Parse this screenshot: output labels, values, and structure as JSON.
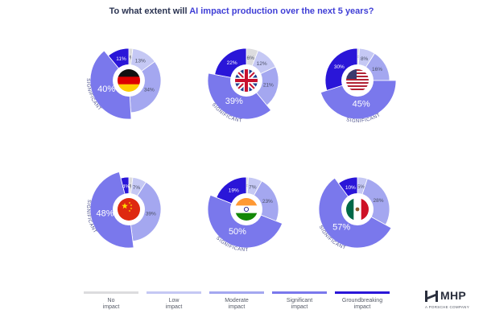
{
  "title": {
    "prefix": "To what extent will ",
    "accent": "AI impact production over the next 5 years?"
  },
  "colors": {
    "no_impact": "#dcdcde",
    "low_impact": "#c5c8f4",
    "moderate_impact": "#a4a7f0",
    "significant_impact": "#7a78ec",
    "groundbreaking_impact": "#2a16d8",
    "title_accent": "#3f3ed6"
  },
  "legend": [
    {
      "line1": "No",
      "line2": "impact",
      "color_key": "no_impact"
    },
    {
      "line1": "Low",
      "line2": "impact",
      "color_key": "low_impact"
    },
    {
      "line1": "Moderate",
      "line2": "impact",
      "color_key": "moderate_impact"
    },
    {
      "line1": "Significant",
      "line2": "impact",
      "color_key": "significant_impact"
    },
    {
      "line1": "Groundbreaking",
      "line2": "impact",
      "color_key": "groundbreaking_impact"
    }
  ],
  "brand": {
    "name": "MHP",
    "subtitle": "A PORSCHE COMPANY"
  },
  "chart_data": {
    "type": "pie",
    "categories": [
      "No impact",
      "Low impact",
      "Moderate impact",
      "Significant impact",
      "Groundbreaking impact"
    ],
    "highlight_label": "SIGNIFICANT",
    "series": [
      {
        "flag": "germany-flag-icon",
        "values": [
          2,
          13,
          34,
          40,
          11
        ],
        "labels": [
          "2%",
          "13%",
          "34%",
          "40%",
          "11%"
        ]
      },
      {
        "flag": "uk-flag-icon",
        "values": [
          6,
          12,
          21,
          39,
          22
        ],
        "labels": [
          "6%",
          "12%",
          "21%",
          "39%",
          "22%"
        ]
      },
      {
        "flag": "usa-flag-icon",
        "values": [
          1,
          8,
          16,
          45,
          30
        ],
        "labels": [
          "1%",
          "8%",
          "16%",
          "45%",
          "30%"
        ]
      },
      {
        "flag": "china-flag-icon",
        "values": [
          2,
          7,
          39,
          48,
          4
        ],
        "labels": [
          "2%",
          "7%",
          "39%",
          "48%",
          "4%"
        ]
      },
      {
        "flag": "india-flag-icon",
        "values": [
          1,
          7,
          23,
          50,
          19
        ],
        "labels": [
          "1%",
          "7%",
          "23%",
          "50%",
          "19%"
        ]
      },
      {
        "flag": "mexico-flag-icon",
        "values": [
          0,
          5,
          28,
          57,
          10
        ],
        "labels": [
          "",
          "5%",
          "28%",
          "57%",
          "10%"
        ]
      }
    ]
  }
}
